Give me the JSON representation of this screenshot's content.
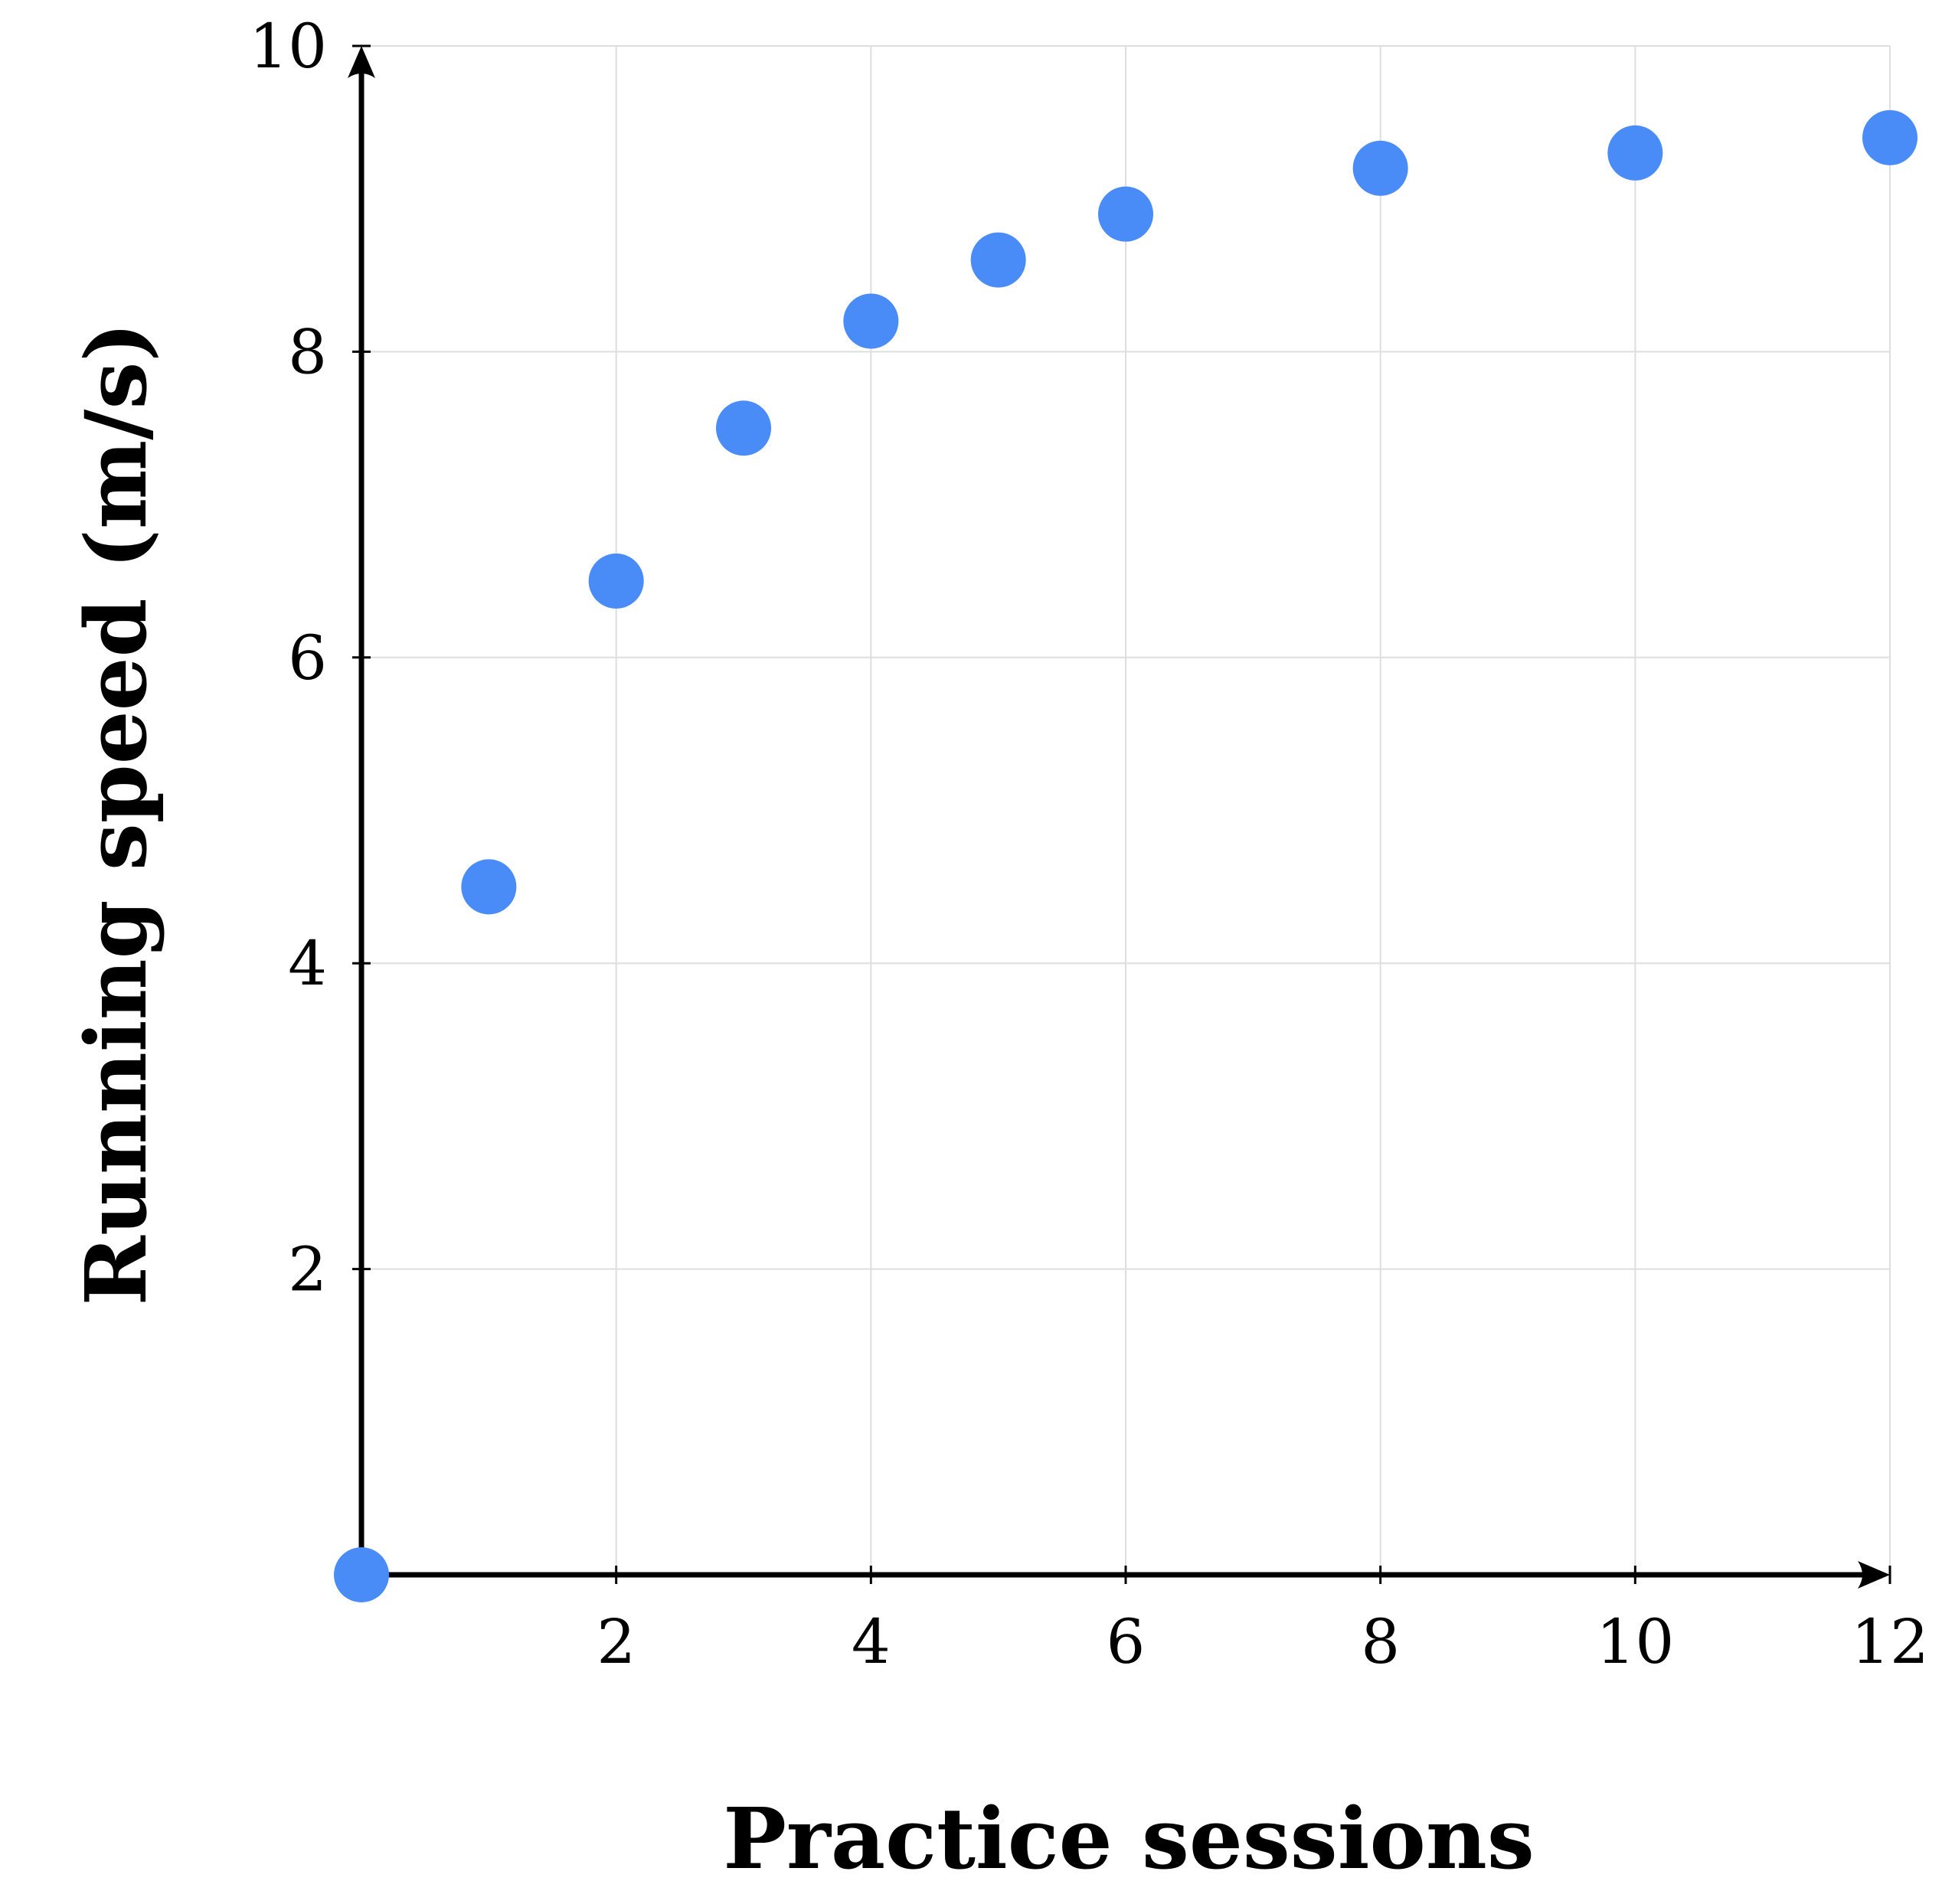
{
  "chart_data": {
    "type": "scatter",
    "xlabel": "Practice sessions",
    "ylabel": "Running speed (m/s)",
    "xlim": [
      0,
      12
    ],
    "ylim": [
      0,
      10
    ],
    "x_ticks": [
      2,
      4,
      6,
      8,
      10,
      12
    ],
    "y_ticks": [
      2,
      4,
      6,
      8,
      10
    ],
    "x_tick_labels": [
      "2",
      "4",
      "6",
      "8",
      "10",
      "12"
    ],
    "y_tick_labels": [
      "2",
      "4",
      "6",
      "8",
      "10"
    ],
    "grid": true,
    "series": [
      {
        "color": "#4a8cf7",
        "points": [
          {
            "x": 0,
            "y": 0
          },
          {
            "x": 1,
            "y": 4.5
          },
          {
            "x": 2,
            "y": 6.5
          },
          {
            "x": 3,
            "y": 7.5
          },
          {
            "x": 4,
            "y": 8.2
          },
          {
            "x": 5,
            "y": 8.6
          },
          {
            "x": 6,
            "y": 8.9
          },
          {
            "x": 8,
            "y": 9.2
          },
          {
            "x": 10,
            "y": 9.3
          },
          {
            "x": 12,
            "y": 9.4
          }
        ]
      }
    ]
  }
}
